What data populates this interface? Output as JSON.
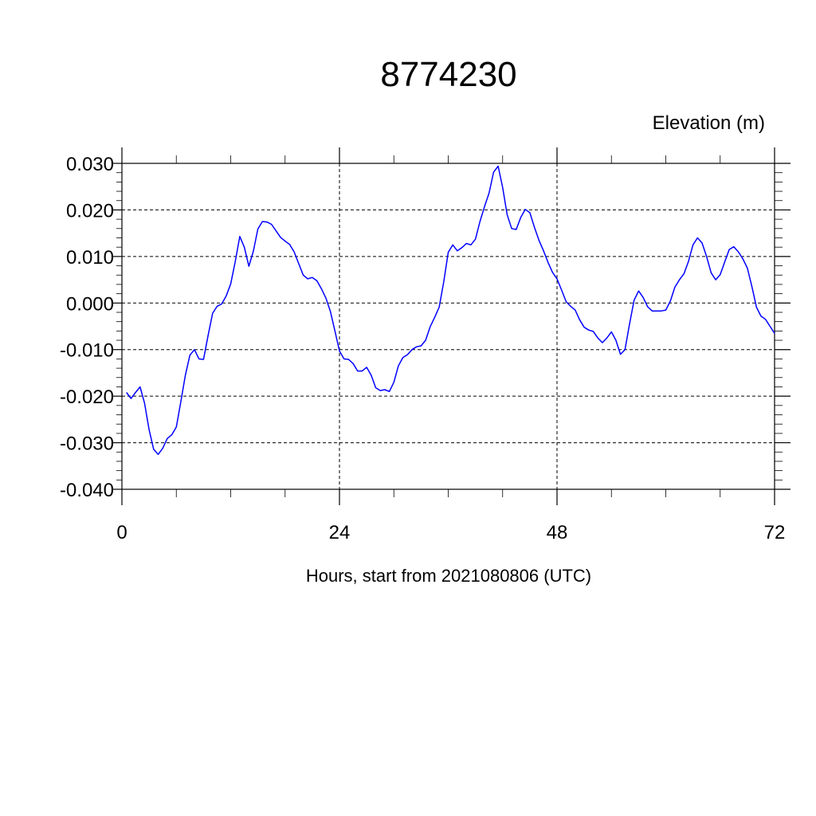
{
  "chart_data": {
    "type": "line",
    "title": "8774230",
    "ylabel": "Elevation (m)",
    "xlabel": "Hours, start from 2021080806 (UTC)",
    "xlim": [
      0,
      72
    ],
    "ylim": [
      -0.04,
      0.03
    ],
    "xticks": [
      0,
      24,
      48,
      72
    ],
    "xtick_labels": [
      "0",
      "24",
      "48",
      "72"
    ],
    "yticks": [
      0.03,
      0.02,
      0.01,
      0.0,
      -0.01,
      -0.02,
      -0.03,
      -0.04
    ],
    "ytick_labels": [
      "0.030",
      "0.020",
      "0.010",
      "0.000",
      "-0.010",
      "-0.020",
      "-0.030",
      "-0.040"
    ],
    "grid": true,
    "line_color": "#0000ff",
    "series": [
      {
        "x": [
          0.5,
          1.0,
          1.5,
          2.0,
          2.5,
          3.0,
          3.5,
          4.0,
          4.5,
          5.0,
          5.5,
          6.0,
          6.5,
          7.0,
          7.5,
          8.0,
          8.5,
          9.0,
          9.5,
          10.0,
          10.5,
          11.0,
          11.5,
          12.0,
          12.5,
          13.0,
          13.5,
          14.0,
          14.5,
          15.0,
          15.5,
          16.0,
          16.5,
          17.0,
          17.5,
          18.0,
          18.5,
          19.0,
          19.5,
          20.0,
          20.5,
          21.0,
          21.5,
          22.0,
          22.5,
          23.0,
          23.5,
          24.0,
          24.5,
          25.0,
          25.5,
          26.0,
          26.5,
          27.0,
          27.5,
          28.0,
          28.5,
          29.0,
          29.5,
          30.0,
          30.5,
          31.0,
          31.5,
          32.0,
          32.5,
          33.0,
          33.5,
          34.0,
          34.5,
          35.0,
          35.5,
          36.0,
          36.5,
          37.0,
          37.5,
          38.0,
          38.5,
          39.0,
          39.5,
          40.0,
          40.5,
          41.0,
          41.5,
          42.0,
          42.5,
          43.0,
          43.5,
          44.0,
          44.5,
          45.0,
          45.5,
          46.0,
          46.5,
          47.0,
          47.5,
          48.0,
          48.5,
          49.0,
          49.5,
          50.0,
          50.5,
          51.0,
          51.5,
          52.0,
          52.5,
          53.0,
          53.5,
          54.0,
          54.5,
          55.0,
          55.5,
          56.0,
          56.5,
          57.0,
          57.5,
          58.0,
          58.5,
          59.0,
          59.5,
          60.0,
          60.5,
          61.0,
          61.5,
          62.0,
          62.5,
          63.0,
          63.5,
          64.0,
          64.5,
          65.0,
          65.5,
          66.0,
          66.5,
          67.0,
          67.5,
          68.0,
          68.5,
          69.0,
          69.5,
          70.0,
          70.5,
          71.0,
          71.5,
          72.0
        ],
        "y": [
          -0.0192,
          -0.0205,
          -0.0192,
          -0.018,
          -0.0215,
          -0.0272,
          -0.0314,
          -0.0325,
          -0.0312,
          -0.0291,
          -0.0283,
          -0.0266,
          -0.0212,
          -0.0155,
          -0.0112,
          -0.01,
          -0.012,
          -0.0121,
          -0.007,
          -0.0022,
          -0.0007,
          -0.0002,
          0.0015,
          0.0041,
          0.0089,
          0.0143,
          0.012,
          0.0079,
          0.0111,
          0.0159,
          0.0175,
          0.0174,
          0.0169,
          0.0155,
          0.0141,
          0.0133,
          0.0126,
          0.011,
          0.0085,
          0.006,
          0.0052,
          0.0055,
          0.0048,
          0.0031,
          0.0011,
          -0.0018,
          -0.006,
          -0.0103,
          -0.012,
          -0.0121,
          -0.013,
          -0.0146,
          -0.0146,
          -0.0138,
          -0.0155,
          -0.0182,
          -0.0188,
          -0.0186,
          -0.019,
          -0.017,
          -0.0135,
          -0.0117,
          -0.0111,
          -0.01,
          -0.0094,
          -0.0092,
          -0.008,
          -0.0051,
          -0.0031,
          -0.0009,
          0.0045,
          0.0109,
          0.0125,
          0.0112,
          0.0119,
          0.0128,
          0.0125,
          0.0137,
          0.0175,
          0.0207,
          0.0236,
          0.0281,
          0.0294,
          0.0248,
          0.019,
          0.016,
          0.0158,
          0.0184,
          0.0201,
          0.0194,
          0.0163,
          0.0135,
          0.0113,
          0.0088,
          0.0066,
          0.0052,
          0.0028,
          0.0003,
          -0.0007,
          -0.0015,
          -0.0036,
          -0.0052,
          -0.0058,
          -0.0061,
          -0.0075,
          -0.0085,
          -0.0075,
          -0.0062,
          -0.008,
          -0.011,
          -0.01,
          -0.0045,
          0.0006,
          0.0026,
          0.0012,
          -0.0008,
          -0.0017,
          -0.0017,
          -0.0017,
          -0.0015,
          0.0004,
          0.0034,
          0.005,
          0.0063,
          0.0089,
          0.0125,
          0.014,
          0.0129,
          0.01,
          0.0065,
          0.005,
          0.0061,
          0.0088,
          0.0115,
          0.0121,
          0.011,
          0.0095,
          0.0075,
          0.0035,
          -0.0009,
          -0.0028,
          -0.0035,
          -0.005,
          -0.0065
        ]
      }
    ]
  }
}
